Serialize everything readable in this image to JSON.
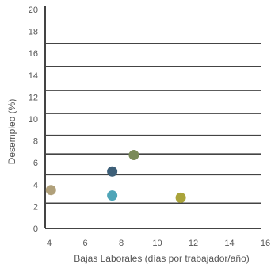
{
  "chart_data": {
    "type": "scatter",
    "title": "",
    "xlabel": "Bajas Laborales (días por trabajador/año)",
    "ylabel": "Desempleo (%)",
    "xlim": [
      4,
      16
    ],
    "ylim": [
      0,
      20
    ],
    "x_ticks": [
      "4",
      "6",
      "8",
      "10",
      "12",
      "14",
      "16"
    ],
    "y_ticks": [
      "0",
      "2",
      "4",
      "6",
      "8",
      "10",
      "12",
      "14",
      "16",
      "18",
      "20"
    ],
    "grid": "horizontal",
    "legend": "none",
    "points": [
      {
        "x": 4.1,
        "y": 3.5,
        "color": "#b0a07a"
      },
      {
        "x": 7.5,
        "y": 3.0,
        "color": "#4fa5b8"
      },
      {
        "x": 7.5,
        "y": 5.2,
        "color": "#3d5f78"
      },
      {
        "x": 8.7,
        "y": 6.7,
        "color": "#7a8a58"
      },
      {
        "x": 11.3,
        "y": 2.8,
        "color": "#aaa43a"
      }
    ],
    "gridlines_y": [
      2.3,
      4.9,
      6.8,
      8.5,
      10.5,
      12.6,
      14.8,
      16.9
    ],
    "colors": {
      "axis": "#444444",
      "gridline": "#444444",
      "text": "#555555"
    }
  }
}
